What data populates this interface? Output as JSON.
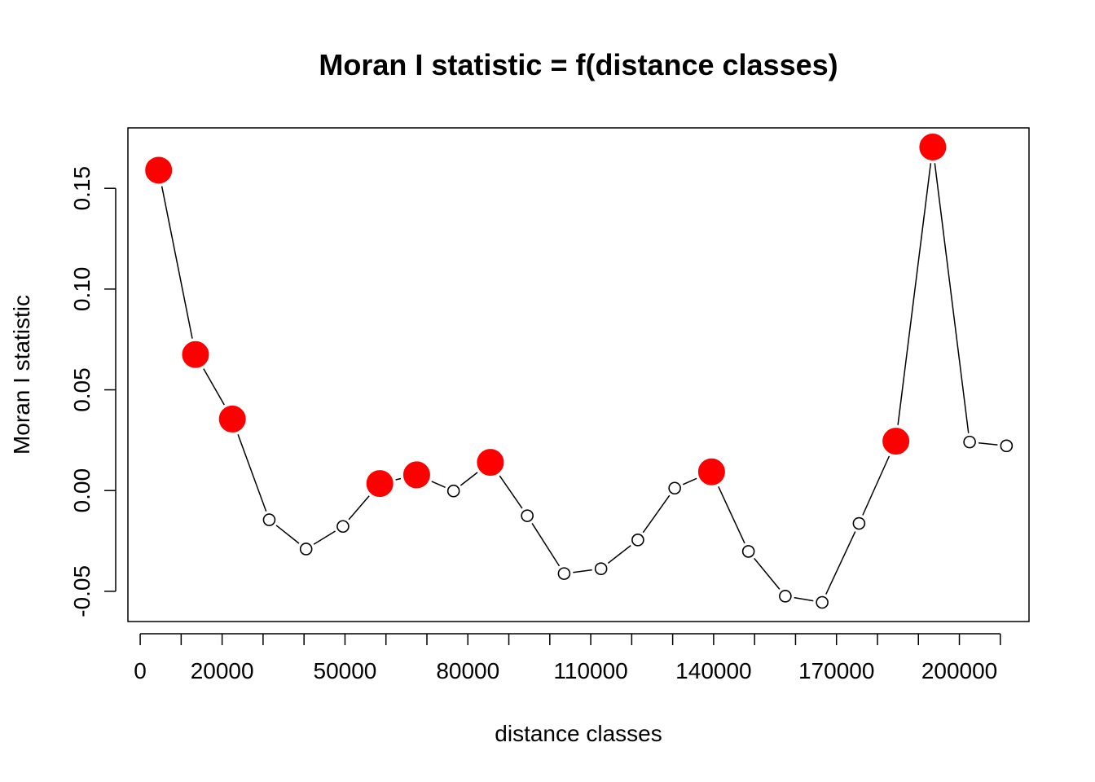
{
  "chart_data": {
    "type": "scatter",
    "title": "Moran I statistic = f(distance classes)",
    "xlabel": "distance classes",
    "ylabel": "Moran I statistic",
    "xlim": [
      -3000,
      217000
    ],
    "ylim": [
      -0.065,
      0.18
    ],
    "x_ticks": [
      0,
      10000,
      20000,
      30000,
      40000,
      50000,
      60000,
      70000,
      80000,
      90000,
      100000,
      110000,
      120000,
      130000,
      140000,
      150000,
      160000,
      170000,
      180000,
      190000,
      200000,
      210000
    ],
    "x_tick_labels": [
      "0",
      "",
      "20000",
      "",
      "",
      "50000",
      "",
      "",
      "80000",
      "",
      "",
      "110000",
      "",
      "",
      "140000",
      "",
      "",
      "170000",
      "",
      "",
      "200000",
      ""
    ],
    "y_ticks": [
      -0.05,
      0.0,
      0.05,
      0.1,
      0.15
    ],
    "y_tick_labels": [
      "-0.05",
      "0.00",
      "0.05",
      "0.10",
      "0.15"
    ],
    "grid": false,
    "colors": {
      "significant": "#ff0000",
      "non_significant": "#ffffff",
      "line": "#000000"
    },
    "points": [
      {
        "x": 4500,
        "y": 0.159,
        "significant": true
      },
      {
        "x": 13500,
        "y": 0.0675,
        "significant": true
      },
      {
        "x": 22500,
        "y": 0.0355,
        "significant": true
      },
      {
        "x": 31500,
        "y": -0.0145,
        "significant": false
      },
      {
        "x": 40500,
        "y": -0.029,
        "significant": false
      },
      {
        "x": 49500,
        "y": -0.0178,
        "significant": false
      },
      {
        "x": 58500,
        "y": 0.0035,
        "significant": true
      },
      {
        "x": 67500,
        "y": 0.0078,
        "significant": true
      },
      {
        "x": 76500,
        "y": -0.0002,
        "significant": false
      },
      {
        "x": 85500,
        "y": 0.014,
        "significant": true
      },
      {
        "x": 94500,
        "y": -0.0125,
        "significant": false
      },
      {
        "x": 103500,
        "y": -0.0412,
        "significant": false
      },
      {
        "x": 112500,
        "y": -0.0388,
        "significant": false
      },
      {
        "x": 121500,
        "y": -0.0245,
        "significant": false
      },
      {
        "x": 130500,
        "y": 0.0012,
        "significant": false
      },
      {
        "x": 139500,
        "y": 0.0093,
        "significant": true
      },
      {
        "x": 148500,
        "y": -0.0302,
        "significant": false
      },
      {
        "x": 157500,
        "y": -0.0524,
        "significant": false
      },
      {
        "x": 166500,
        "y": -0.0555,
        "significant": false
      },
      {
        "x": 175500,
        "y": -0.0163,
        "significant": false
      },
      {
        "x": 184500,
        "y": 0.0245,
        "significant": true
      },
      {
        "x": 193500,
        "y": 0.1705,
        "significant": true
      },
      {
        "x": 202500,
        "y": 0.0241,
        "significant": false
      },
      {
        "x": 211500,
        "y": 0.0222,
        "significant": false
      }
    ]
  }
}
